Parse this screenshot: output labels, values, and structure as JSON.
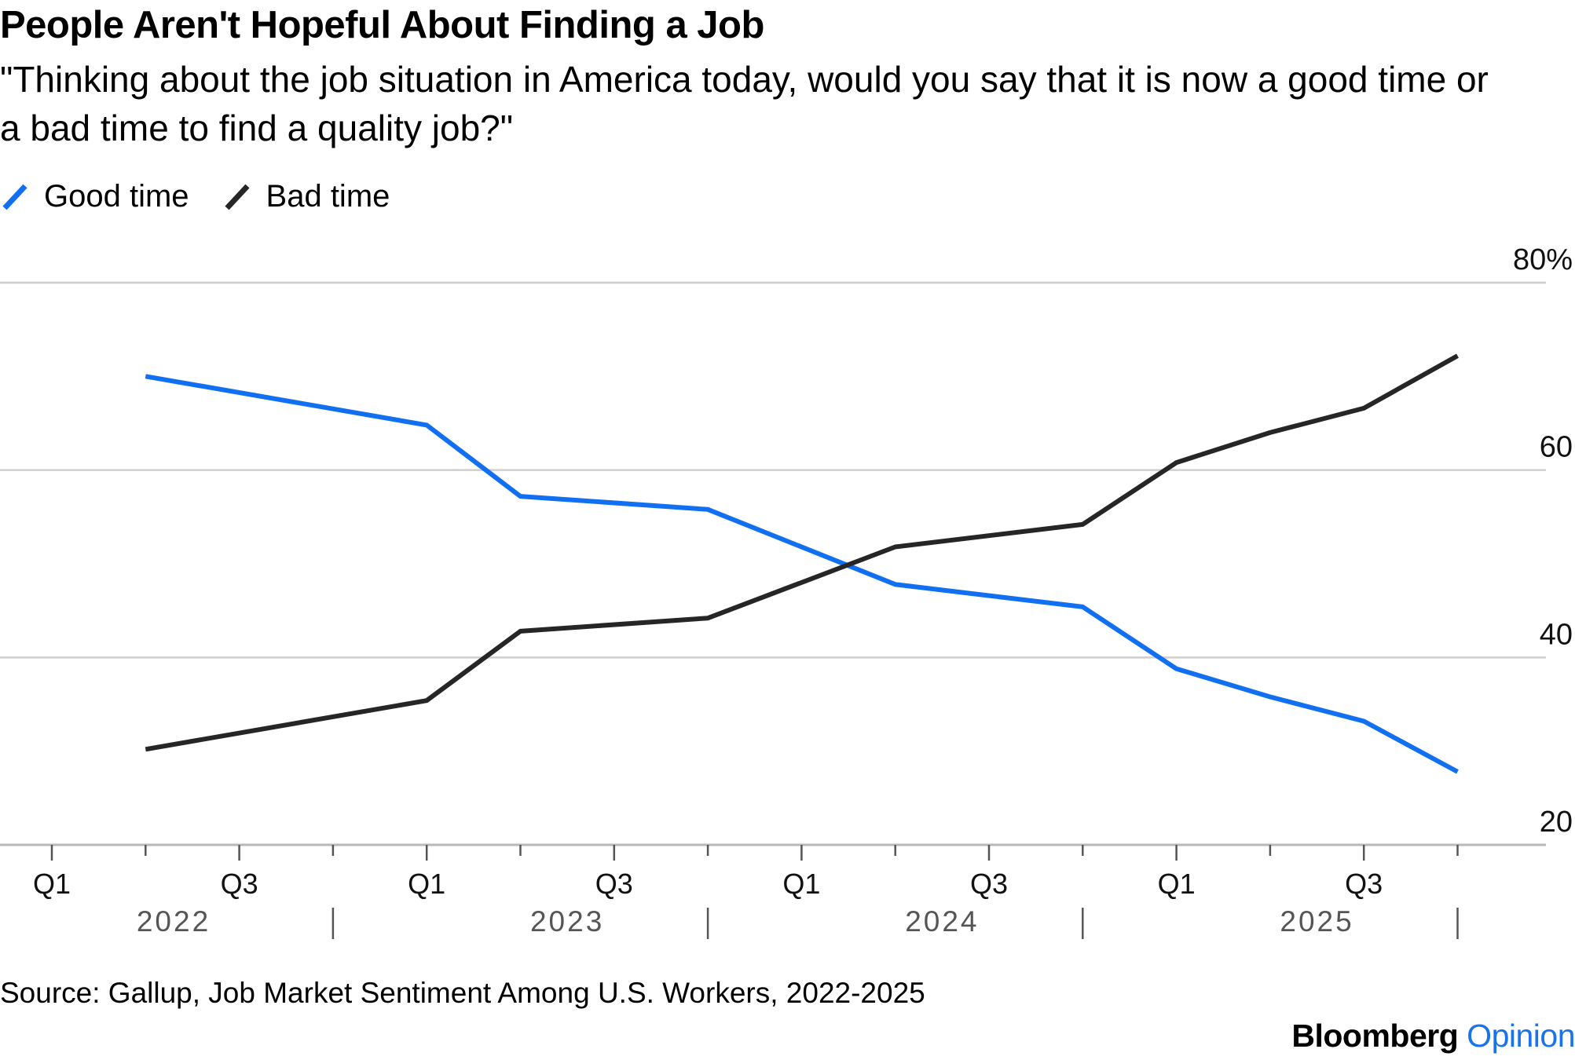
{
  "header": {
    "title": "People Aren't Hopeful About Finding a Job",
    "subtitle": "\"Thinking about the job situation in America today, would you say that it is now a good time or a bad time to find a quality job?\""
  },
  "footer": {
    "source": "Source: Gallup, Job Market Sentiment Among U.S. Workers, 2022-2025",
    "brand_main": "Bloomberg",
    "brand_accent": "Opinion"
  },
  "colors": {
    "good_time": "#1170F1",
    "bad_time": "#262626",
    "grid": "#cfcfcf",
    "axis": "#b8b8b8",
    "tick": "#555555",
    "year_label": "#555555",
    "accent": "#1a73e8"
  },
  "chart_data": {
    "type": "line",
    "title": "People Aren't Hopeful About Finding a Job",
    "xlabel": "",
    "ylabel": "",
    "ylim": [
      20,
      80
    ],
    "y_ticks": [
      20,
      40,
      60,
      80
    ],
    "y_tick_labels": [
      "20",
      "40",
      "60",
      "80%"
    ],
    "grid": true,
    "legend_position": "top-left",
    "quarter_ticks": [
      "Q1",
      "Q3",
      "Q1",
      "Q3",
      "Q1",
      "Q3",
      "Q1",
      "Q3"
    ],
    "years": [
      "2022",
      "2023",
      "2024",
      "2025"
    ],
    "x": [
      "2022 Q2",
      "2023 Q1",
      "2023 Q2",
      "2023 Q4",
      "2024 Q2",
      "2024 Q4",
      "2025 Q1",
      "2025 Q2",
      "2025 Q3",
      "2025 Q4"
    ],
    "series": [
      {
        "name": "Good time",
        "values": [
          70,
          64.8,
          57.2,
          55.8,
          47.8,
          45.4,
          38.8,
          35.8,
          33.2,
          27.8
        ]
      },
      {
        "name": "Bad time",
        "values": [
          30.2,
          35.4,
          42.8,
          44.2,
          51.8,
          54.2,
          60.8,
          64,
          66.6,
          72.2
        ]
      }
    ]
  }
}
